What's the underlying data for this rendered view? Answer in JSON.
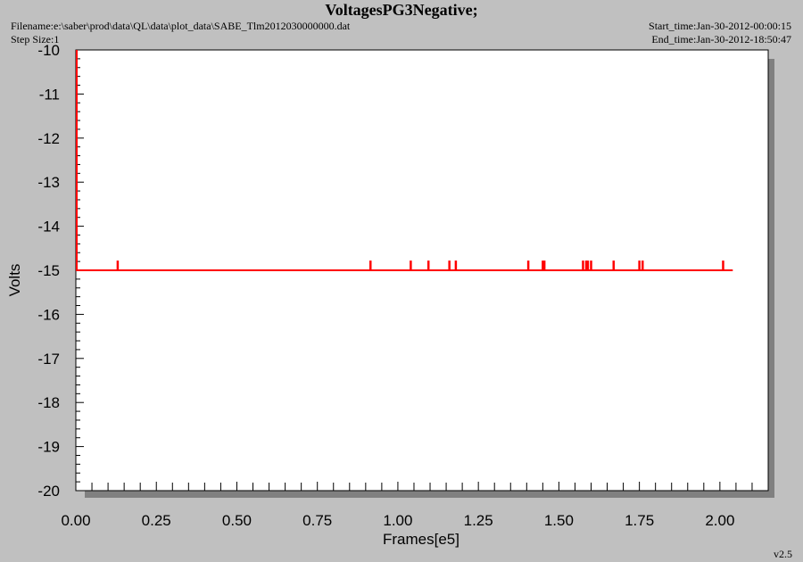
{
  "header": {
    "filename": "Filename:e:\\saber\\prod\\data\\QL\\data\\plot_data\\SABE_Tlm2012030000000.dat",
    "step_size": "Step Size:1",
    "start_time": "Start_time:Jan-30-2012-00:00:15",
    "end_time": "End_time:Jan-30-2012-18:50:47"
  },
  "footer": {
    "version": "v2.5"
  },
  "colors": {
    "series": "#ff0000",
    "axis": "#000000",
    "shadow": "#808080",
    "background": "#c0c0c0",
    "plot": "#ffffff"
  },
  "chart_data": {
    "type": "line",
    "title": "VoltagesPG3Negative;",
    "xlabel": "Frames[e5]",
    "ylabel": "Volts",
    "xlim": [
      0.0,
      2.15
    ],
    "ylim": [
      -20,
      -10
    ],
    "xticks": [
      "0.00",
      "0.25",
      "0.50",
      "0.75",
      "1.00",
      "1.25",
      "1.50",
      "1.75",
      "2.00"
    ],
    "yticks": [
      "-10",
      "-11",
      "-12",
      "-13",
      "-14",
      "-15",
      "-16",
      "-17",
      "-18",
      "-19",
      "-20"
    ],
    "grid": false,
    "series": [
      {
        "baseline": -15.0,
        "x_range": [
          0.0,
          2.04
        ],
        "start_spike": {
          "x": 0.0,
          "y": -10.0
        },
        "spikes": {
          "y": -14.8,
          "x": [
            0.13,
            0.915,
            1.04,
            1.095,
            1.16,
            1.18,
            1.405,
            1.45,
            1.455,
            1.575,
            1.585,
            1.59,
            1.6,
            1.67,
            1.75,
            1.76,
            2.01
          ]
        }
      }
    ]
  }
}
